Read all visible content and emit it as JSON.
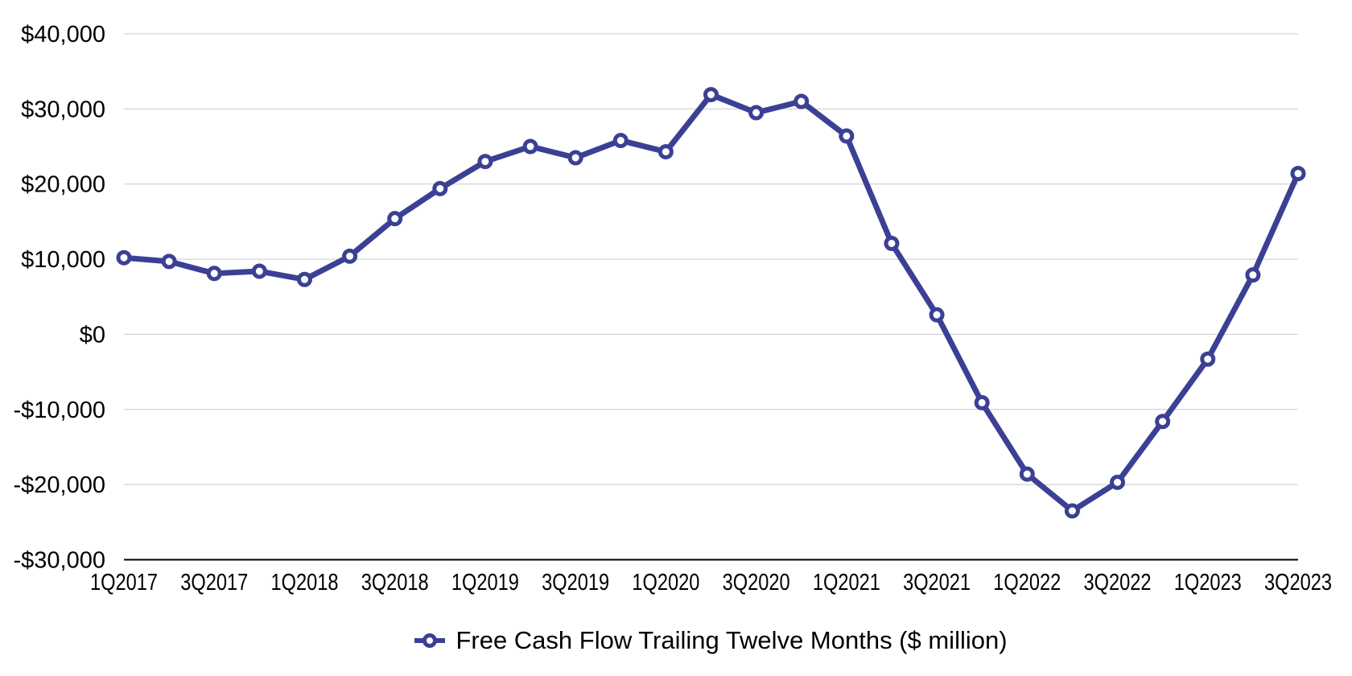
{
  "chart_data": {
    "type": "line",
    "title": "",
    "categories": [
      "1Q2017",
      "2Q2017",
      "3Q2017",
      "4Q2017",
      "1Q2018",
      "2Q2018",
      "3Q2018",
      "4Q2018",
      "1Q2019",
      "2Q2019",
      "3Q2019",
      "4Q2019",
      "1Q2020",
      "2Q2020",
      "3Q2020",
      "4Q2020",
      "1Q2021",
      "2Q2021",
      "3Q2021",
      "4Q2021",
      "1Q2022",
      "2Q2022",
      "3Q2022",
      "4Q2022",
      "1Q2023",
      "2Q2023",
      "3Q2023"
    ],
    "series": [
      {
        "name": "Free Cash Flow Trailing Twelve Months ($ million)",
        "values": [
          10200,
          9700,
          8100,
          8400,
          7300,
          10400,
          15400,
          19400,
          23000,
          25000,
          23500,
          25800,
          24300,
          31900,
          29500,
          31000,
          26400,
          12100,
          2600,
          -9100,
          -18600,
          -23500,
          -19700,
          -11600,
          -3300,
          7900,
          21400
        ]
      }
    ],
    "x_tick_labels": [
      "1Q2017",
      "3Q2017",
      "1Q2018",
      "3Q2018",
      "1Q2019",
      "3Q2019",
      "1Q2020",
      "3Q2020",
      "1Q2021",
      "3Q2021",
      "1Q2022",
      "3Q2022",
      "1Q2023",
      "3Q2023"
    ],
    "y_ticks": [
      {
        "value": 40000,
        "label": "$40,000"
      },
      {
        "value": 30000,
        "label": "$30,000"
      },
      {
        "value": 20000,
        "label": "$20,000"
      },
      {
        "value": 10000,
        "label": "$10,000"
      },
      {
        "value": 0,
        "label": "$0"
      },
      {
        "value": -10000,
        "label": "-$10,000"
      },
      {
        "value": -20000,
        "label": "-$20,000"
      },
      {
        "value": -30000,
        "label": "-$30,000"
      }
    ],
    "ylim": [
      -30000,
      40000
    ],
    "xlabel": "",
    "ylabel": "",
    "grid": "horizontal",
    "legend_position": "bottom",
    "marker": "open-circle",
    "colors": {
      "line": "#3b4094",
      "marker_fill": "#ffffff",
      "grid": "#c9c9c9",
      "axis": "#000000",
      "text": "#000000",
      "background": "#ffffff"
    }
  }
}
